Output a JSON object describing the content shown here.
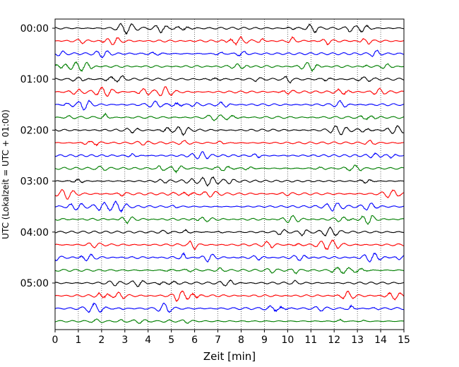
{
  "chart_data": {
    "type": "line",
    "title": "",
    "xlabel": "Zeit  [min]",
    "ylabel": "UTC (Lokalzeit = UTC + 01:00)",
    "xlim": [
      0,
      15
    ],
    "x_ticks": [
      "0",
      "1",
      "2",
      "3",
      "4",
      "5",
      "6",
      "7",
      "8",
      "9",
      "10",
      "11",
      "12",
      "13",
      "14",
      "15"
    ],
    "y_ticks": [
      "00:00",
      "01:00",
      "02:00",
      "03:00",
      "04:00",
      "05:00"
    ],
    "grid": "vertical dotted",
    "rows_per_hour": 4,
    "minutes_per_row": 15,
    "row_colors": [
      "#000000",
      "#ff0000",
      "#0000ff",
      "#007f00"
    ],
    "rows": [
      {
        "start": "00:00",
        "color": "#000000"
      },
      {
        "start": "00:15",
        "color": "#ff0000"
      },
      {
        "start": "00:30",
        "color": "#0000ff"
      },
      {
        "start": "00:45",
        "color": "#007f00"
      },
      {
        "start": "01:00",
        "color": "#000000"
      },
      {
        "start": "01:15",
        "color": "#ff0000"
      },
      {
        "start": "01:30",
        "color": "#0000ff"
      },
      {
        "start": "01:45",
        "color": "#007f00"
      },
      {
        "start": "02:00",
        "color": "#000000"
      },
      {
        "start": "02:15",
        "color": "#ff0000"
      },
      {
        "start": "02:30",
        "color": "#0000ff"
      },
      {
        "start": "02:45",
        "color": "#007f00"
      },
      {
        "start": "03:00",
        "color": "#000000"
      },
      {
        "start": "03:15",
        "color": "#ff0000"
      },
      {
        "start": "03:30",
        "color": "#0000ff"
      },
      {
        "start": "03:45",
        "color": "#007f00"
      },
      {
        "start": "04:00",
        "color": "#000000"
      },
      {
        "start": "04:15",
        "color": "#ff0000"
      },
      {
        "start": "04:30",
        "color": "#0000ff"
      },
      {
        "start": "04:45",
        "color": "#007f00"
      },
      {
        "start": "05:00",
        "color": "#000000"
      },
      {
        "start": "05:15",
        "color": "#ff0000"
      },
      {
        "start": "05:30",
        "color": "#0000ff"
      },
      {
        "start": "05:45",
        "color": "#007f00"
      }
    ]
  }
}
